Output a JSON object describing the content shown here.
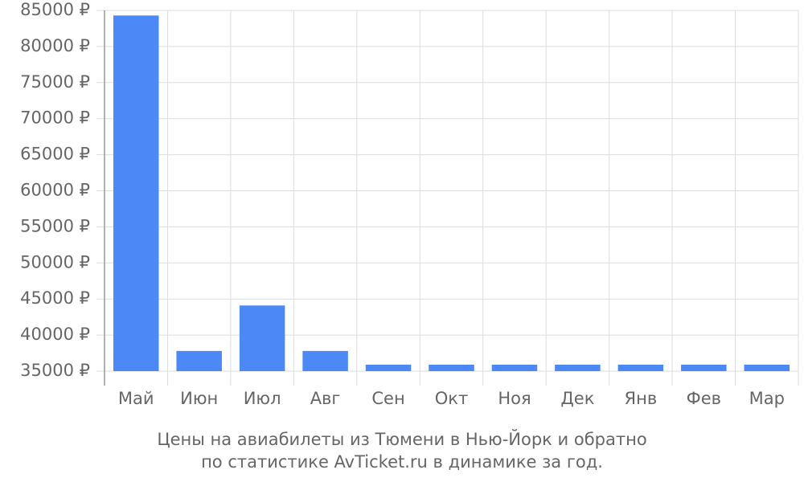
{
  "chart_data": {
    "type": "bar",
    "title": [
      "Цены на авиабилеты из Тюмени в Нью-Йорк и обратно",
      "по статистике AvTicket.ru в динамике за год."
    ],
    "categories": [
      "Май",
      "Июн",
      "Июл",
      "Авг",
      "Сен",
      "Окт",
      "Ноя",
      "Дек",
      "Янв",
      "Фев",
      "Мар"
    ],
    "values": [
      84300,
      37800,
      44100,
      37800,
      35900,
      35900,
      35900,
      35900,
      35900,
      35900,
      35900
    ],
    "color": "#4d88f7",
    "ylim": [
      35000,
      85000
    ],
    "yticks": [
      {
        "value": 35000,
        "label": "35000 ₽"
      },
      {
        "value": 40000,
        "label": "40000 ₽"
      },
      {
        "value": 45000,
        "label": "45000 ₽"
      },
      {
        "value": 50000,
        "label": "50000 ₽"
      },
      {
        "value": 55000,
        "label": "55000 ₽"
      },
      {
        "value": 60000,
        "label": "60000 ₽"
      },
      {
        "value": 65000,
        "label": "65000 ₽"
      },
      {
        "value": 70000,
        "label": "70000 ₽"
      },
      {
        "value": 75000,
        "label": "75000 ₽"
      },
      {
        "value": 80000,
        "label": "80000 ₽"
      },
      {
        "value": 85000,
        "label": "85000 ₽"
      }
    ],
    "grid": true
  }
}
